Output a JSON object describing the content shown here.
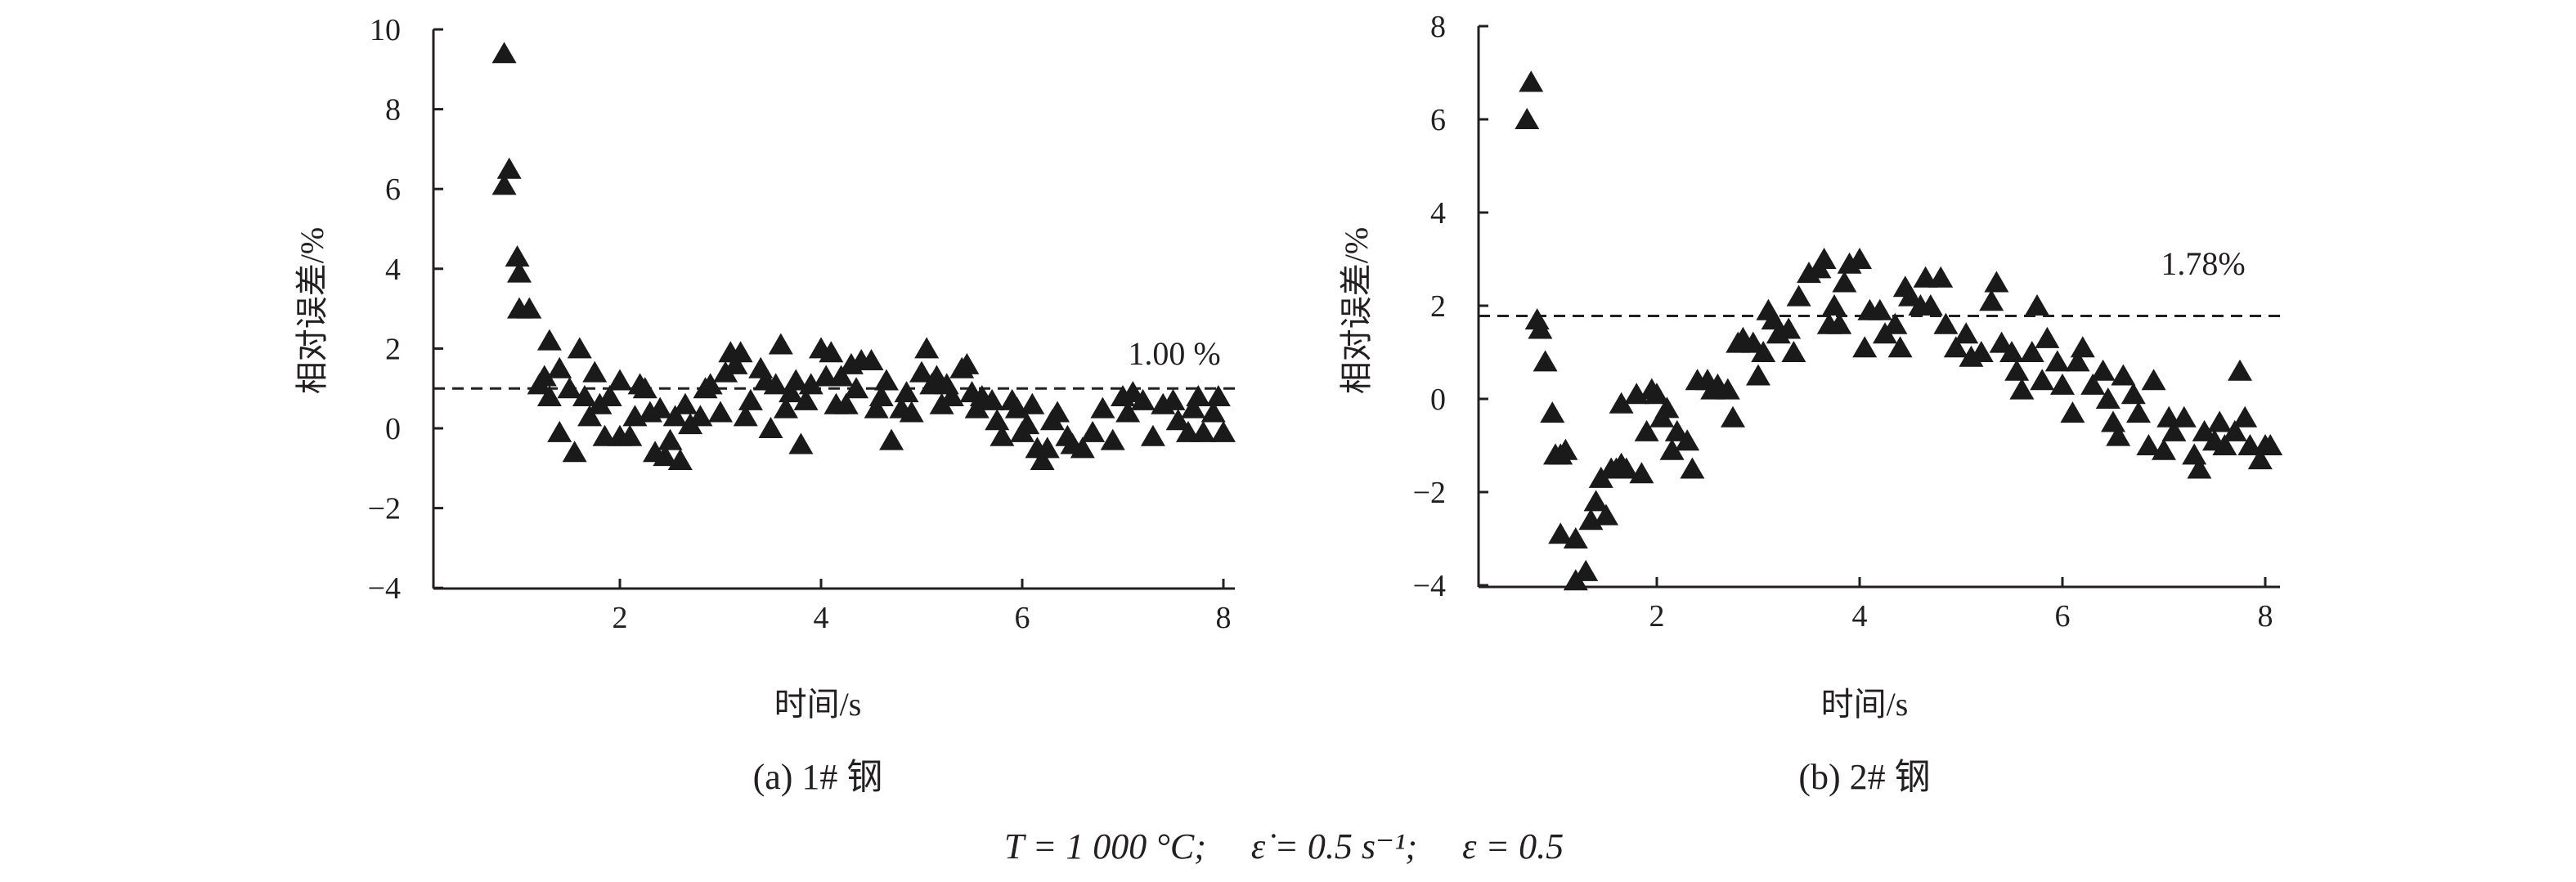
{
  "chart_data": [
    {
      "type": "scatter",
      "panel": "a",
      "caption": "(a) 1# 钢",
      "xlabel": "时间/s",
      "ylabel": "相对误差/%",
      "xlim": [
        0.15,
        8.05
      ],
      "ylim": [
        -4,
        10
      ],
      "xticks": [
        "2",
        "4",
        "6",
        "8"
      ],
      "yticks": [
        "10",
        "8",
        "6",
        "4",
        "2",
        "0",
        "−2",
        "−4"
      ],
      "grid": false,
      "mean_line": {
        "value": 1.0,
        "label": "1.00 %"
      },
      "points": [
        [
          0.85,
          9.4
        ],
        [
          0.85,
          6.1
        ],
        [
          0.9,
          6.5
        ],
        [
          0.98,
          4.3
        ],
        [
          1.0,
          3.9
        ],
        [
          1.0,
          3.0
        ],
        [
          1.1,
          3.0
        ],
        [
          1.2,
          1.1
        ],
        [
          1.25,
          1.3
        ],
        [
          1.3,
          0.8
        ],
        [
          1.3,
          2.2
        ],
        [
          1.4,
          1.5
        ],
        [
          1.4,
          -0.1
        ],
        [
          1.5,
          1.0
        ],
        [
          1.55,
          -0.6
        ],
        [
          1.6,
          2.0
        ],
        [
          1.65,
          0.8
        ],
        [
          1.7,
          0.3
        ],
        [
          1.75,
          1.4
        ],
        [
          1.8,
          0.6
        ],
        [
          1.85,
          -0.2
        ],
        [
          1.9,
          0.8
        ],
        [
          2.0,
          -0.2
        ],
        [
          2.0,
          1.2
        ],
        [
          2.1,
          -0.2
        ],
        [
          2.15,
          0.3
        ],
        [
          2.2,
          1.1
        ],
        [
          2.25,
          1.0
        ],
        [
          2.3,
          0.4
        ],
        [
          2.35,
          -0.6
        ],
        [
          2.4,
          0.5
        ],
        [
          2.45,
          -0.7
        ],
        [
          2.5,
          -0.3
        ],
        [
          2.55,
          0.3
        ],
        [
          2.6,
          -0.8
        ],
        [
          2.65,
          0.6
        ],
        [
          2.7,
          0.1
        ],
        [
          2.8,
          0.3
        ],
        [
          2.85,
          1.0
        ],
        [
          2.9,
          1.1
        ],
        [
          3.0,
          0.4
        ],
        [
          3.05,
          1.4
        ],
        [
          3.1,
          1.9
        ],
        [
          3.15,
          1.6
        ],
        [
          3.2,
          1.9
        ],
        [
          3.25,
          0.3
        ],
        [
          3.3,
          0.7
        ],
        [
          3.4,
          1.5
        ],
        [
          3.45,
          1.2
        ],
        [
          3.5,
          0.0
        ],
        [
          3.55,
          1.1
        ],
        [
          3.6,
          2.1
        ],
        [
          3.65,
          0.5
        ],
        [
          3.7,
          0.9
        ],
        [
          3.75,
          1.2
        ],
        [
          3.8,
          -0.4
        ],
        [
          3.85,
          0.7
        ],
        [
          3.9,
          1.1
        ],
        [
          4.0,
          2.0
        ],
        [
          4.05,
          1.3
        ],
        [
          4.1,
          1.9
        ],
        [
          4.15,
          0.6
        ],
        [
          4.2,
          1.3
        ],
        [
          4.25,
          0.6
        ],
        [
          4.3,
          1.6
        ],
        [
          4.35,
          1.0
        ],
        [
          4.4,
          1.7
        ],
        [
          4.5,
          1.7
        ],
        [
          4.55,
          0.5
        ],
        [
          4.6,
          0.8
        ],
        [
          4.65,
          1.2
        ],
        [
          4.7,
          -0.3
        ],
        [
          4.8,
          0.5
        ],
        [
          4.85,
          0.9
        ],
        [
          4.9,
          0.4
        ],
        [
          5.0,
          1.4
        ],
        [
          5.05,
          2.0
        ],
        [
          5.1,
          1.1
        ],
        [
          5.15,
          1.3
        ],
        [
          5.2,
          0.6
        ],
        [
          5.25,
          1.1
        ],
        [
          5.3,
          0.8
        ],
        [
          5.4,
          1.5
        ],
        [
          5.45,
          1.6
        ],
        [
          5.5,
          0.9
        ],
        [
          5.55,
          0.5
        ],
        [
          5.6,
          0.8
        ],
        [
          5.7,
          0.7
        ],
        [
          5.75,
          0.2
        ],
        [
          5.8,
          -0.2
        ],
        [
          5.9,
          0.7
        ],
        [
          5.95,
          0.5
        ],
        [
          6.0,
          -0.1
        ],
        [
          6.05,
          0.1
        ],
        [
          6.1,
          0.6
        ],
        [
          6.15,
          -0.5
        ],
        [
          6.2,
          -0.8
        ],
        [
          6.25,
          -0.5
        ],
        [
          6.3,
          0.2
        ],
        [
          6.35,
          0.4
        ],
        [
          6.45,
          -0.2
        ],
        [
          6.5,
          -0.4
        ],
        [
          6.6,
          -0.5
        ],
        [
          6.7,
          -0.1
        ],
        [
          6.8,
          0.5
        ],
        [
          6.9,
          -0.3
        ],
        [
          7.0,
          0.8
        ],
        [
          7.05,
          0.4
        ],
        [
          7.1,
          0.9
        ],
        [
          7.2,
          0.7
        ],
        [
          7.3,
          -0.2
        ],
        [
          7.4,
          0.6
        ],
        [
          7.5,
          0.7
        ],
        [
          7.55,
          0.2
        ],
        [
          7.65,
          -0.1
        ],
        [
          7.7,
          0.5
        ],
        [
          7.75,
          0.8
        ],
        [
          7.8,
          -0.1
        ],
        [
          7.9,
          0.4
        ],
        [
          7.95,
          0.8
        ],
        [
          8.0,
          -0.1
        ]
      ]
    },
    {
      "type": "scatter",
      "panel": "b",
      "caption": "(b) 2# 钢",
      "xlabel": "时间/s",
      "ylabel": "相对误差/%",
      "xlim": [
        0.24,
        8.1
      ],
      "ylim": [
        -4,
        8
      ],
      "xticks": [
        "2",
        "4",
        "6",
        "8"
      ],
      "yticks": [
        "8",
        "6",
        "4",
        "2",
        "0",
        "−2",
        "−4"
      ],
      "grid": false,
      "mean_line": {
        "value": 1.78,
        "label": "1.78%"
      },
      "points": [
        [
          0.72,
          6.0
        ],
        [
          0.76,
          6.8
        ],
        [
          0.82,
          1.7
        ],
        [
          0.85,
          1.5
        ],
        [
          0.9,
          0.8
        ],
        [
          0.97,
          -0.3
        ],
        [
          1.0,
          -1.2
        ],
        [
          1.05,
          -1.2
        ],
        [
          1.1,
          -1.1
        ],
        [
          1.05,
          -2.9
        ],
        [
          1.2,
          -3.0
        ],
        [
          1.2,
          -3.9
        ],
        [
          1.3,
          -3.7
        ],
        [
          1.35,
          -2.6
        ],
        [
          1.4,
          -2.2
        ],
        [
          1.45,
          -1.7
        ],
        [
          1.5,
          -2.5
        ],
        [
          1.55,
          -1.5
        ],
        [
          1.6,
          -1.5
        ],
        [
          1.65,
          -1.4
        ],
        [
          1.7,
          -1.5
        ],
        [
          1.65,
          -0.1
        ],
        [
          1.8,
          0.1
        ],
        [
          1.85,
          -1.6
        ],
        [
          1.9,
          -0.7
        ],
        [
          1.95,
          0.2
        ],
        [
          2.0,
          0.1
        ],
        [
          2.05,
          -0.4
        ],
        [
          2.1,
          -0.2
        ],
        [
          2.15,
          -1.1
        ],
        [
          2.2,
          -0.7
        ],
        [
          2.3,
          -0.9
        ],
        [
          2.35,
          -1.5
        ],
        [
          2.4,
          0.4
        ],
        [
          2.5,
          0.4
        ],
        [
          2.55,
          0.2
        ],
        [
          2.6,
          0.3
        ],
        [
          2.7,
          0.2
        ],
        [
          2.75,
          -0.4
        ],
        [
          2.8,
          1.2
        ],
        [
          2.85,
          1.3
        ],
        [
          2.95,
          1.2
        ],
        [
          3.0,
          0.5
        ],
        [
          3.05,
          1.0
        ],
        [
          3.1,
          1.9
        ],
        [
          3.15,
          1.7
        ],
        [
          3.2,
          1.4
        ],
        [
          3.3,
          1.5
        ],
        [
          3.35,
          1.0
        ],
        [
          3.4,
          2.2
        ],
        [
          3.5,
          2.7
        ],
        [
          3.6,
          2.8
        ],
        [
          3.65,
          3.0
        ],
        [
          3.7,
          1.6
        ],
        [
          3.75,
          2.0
        ],
        [
          3.8,
          1.6
        ],
        [
          3.85,
          2.5
        ],
        [
          3.9,
          2.9
        ],
        [
          4.0,
          3.0
        ],
        [
          4.05,
          1.1
        ],
        [
          4.1,
          1.9
        ],
        [
          4.2,
          1.9
        ],
        [
          4.25,
          1.4
        ],
        [
          4.35,
          1.6
        ],
        [
          4.4,
          1.1
        ],
        [
          4.45,
          2.4
        ],
        [
          4.5,
          2.2
        ],
        [
          4.6,
          2.0
        ],
        [
          4.65,
          2.6
        ],
        [
          4.7,
          2.0
        ],
        [
          4.8,
          2.6
        ],
        [
          4.85,
          1.6
        ],
        [
          4.95,
          1.1
        ],
        [
          5.05,
          1.4
        ],
        [
          5.1,
          0.9
        ],
        [
          5.2,
          1.0
        ],
        [
          5.3,
          2.1
        ],
        [
          5.35,
          2.5
        ],
        [
          5.4,
          1.2
        ],
        [
          5.5,
          1.0
        ],
        [
          5.55,
          0.6
        ],
        [
          5.6,
          0.2
        ],
        [
          5.7,
          1.0
        ],
        [
          5.75,
          2.0
        ],
        [
          5.8,
          0.4
        ],
        [
          5.85,
          1.3
        ],
        [
          5.95,
          0.8
        ],
        [
          6.0,
          0.3
        ],
        [
          6.1,
          -0.3
        ],
        [
          6.15,
          0.8
        ],
        [
          6.2,
          1.1
        ],
        [
          6.3,
          0.3
        ],
        [
          6.4,
          0.6
        ],
        [
          6.45,
          0.0
        ],
        [
          6.5,
          -0.5
        ],
        [
          6.55,
          -0.8
        ],
        [
          6.6,
          0.5
        ],
        [
          6.7,
          0.1
        ],
        [
          6.75,
          -0.3
        ],
        [
          6.85,
          -1.0
        ],
        [
          6.9,
          0.4
        ],
        [
          7.0,
          -1.1
        ],
        [
          7.05,
          -0.4
        ],
        [
          7.1,
          -0.7
        ],
        [
          7.2,
          -0.4
        ],
        [
          7.3,
          -1.2
        ],
        [
          7.35,
          -1.5
        ],
        [
          7.4,
          -0.7
        ],
        [
          7.5,
          -0.9
        ],
        [
          7.55,
          -0.5
        ],
        [
          7.6,
          -1.0
        ],
        [
          7.7,
          -0.7
        ],
        [
          7.75,
          0.6
        ],
        [
          7.8,
          -0.4
        ],
        [
          7.85,
          -1.0
        ],
        [
          7.95,
          -1.3
        ],
        [
          8.0,
          -1.0
        ],
        [
          8.05,
          -1.0
        ]
      ]
    }
  ],
  "conditions": "T = 1 000 °C;     ε̇ = 0.5 s⁻¹;     ε = 0.5"
}
